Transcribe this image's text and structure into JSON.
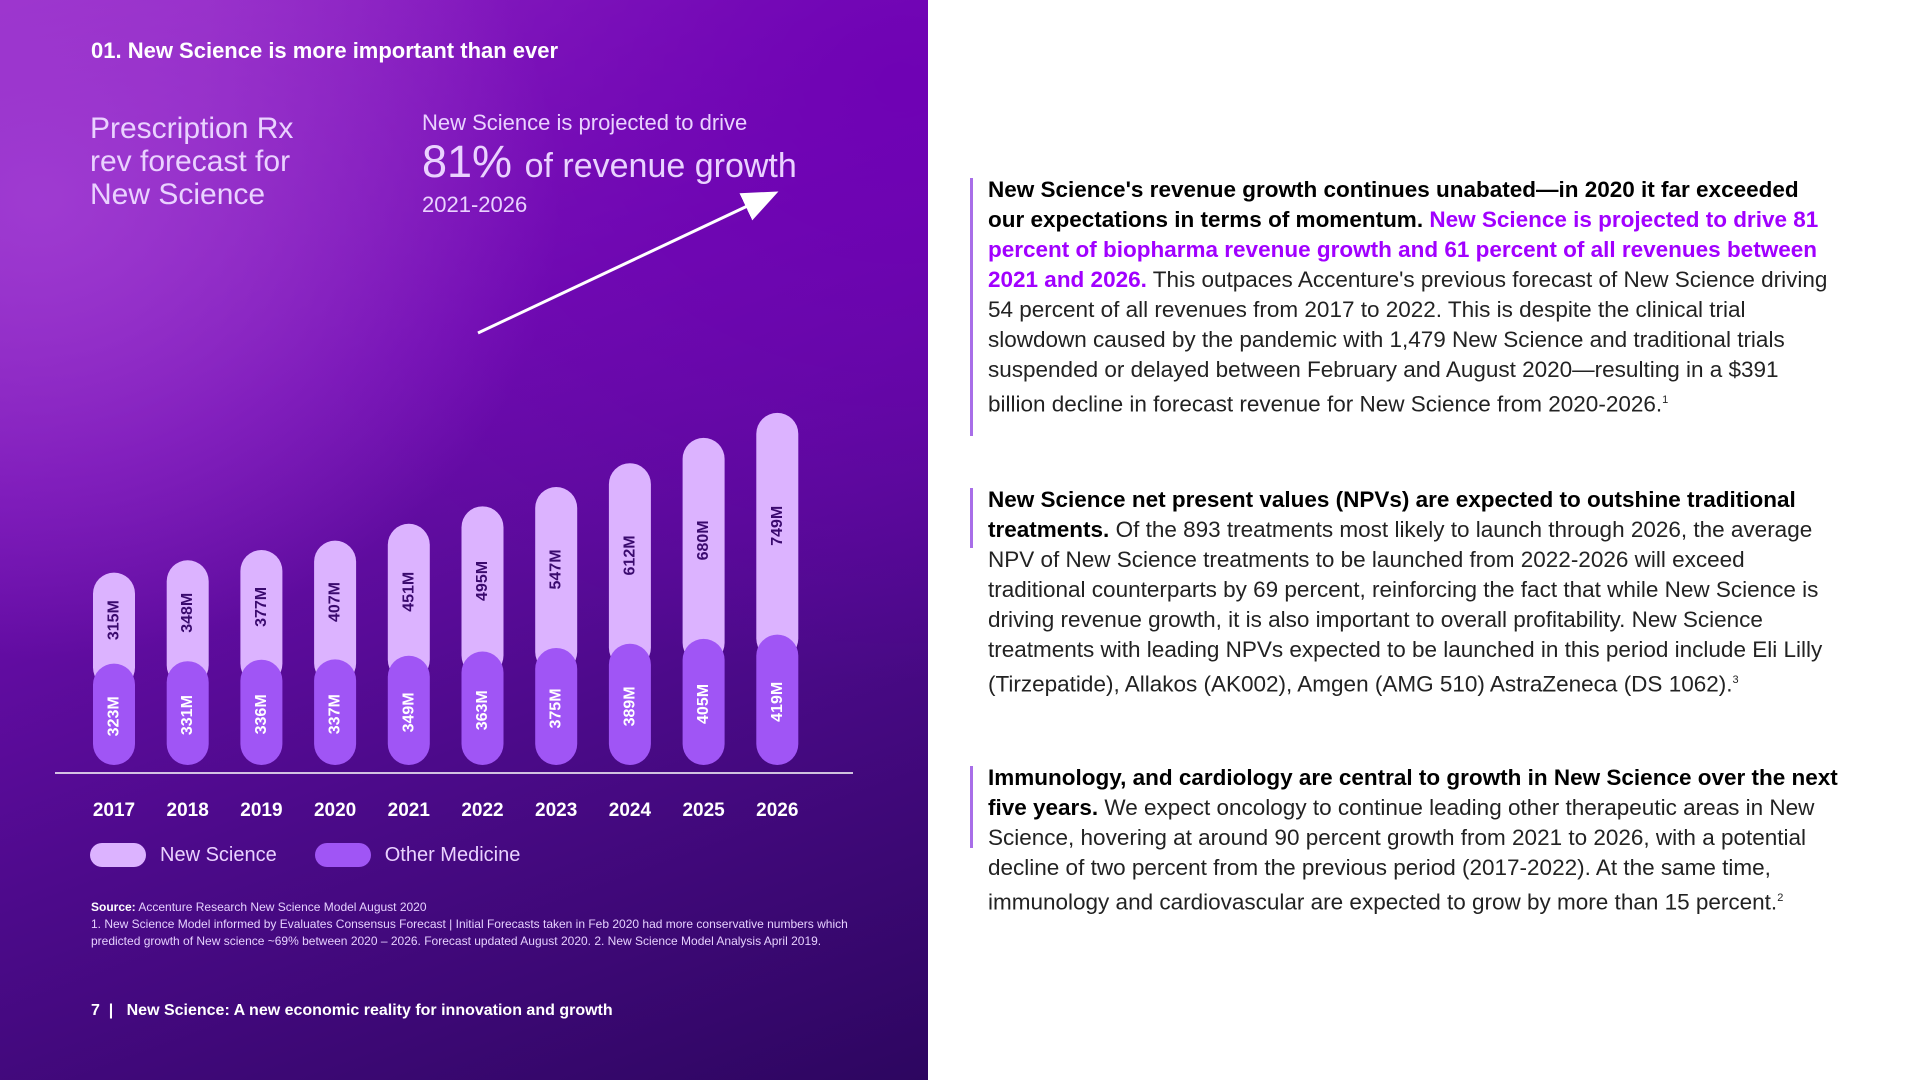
{
  "section_title": "01. New Science is more important than ever",
  "chart_heading": "Prescription Rx\nrev forecast for\nNew Science",
  "callout": {
    "lead": "New Science is projected to drive",
    "percent": "81%",
    "rest": "of revenue growth",
    "years": "2021-2026"
  },
  "chart_data": {
    "type": "bar",
    "stacked": true,
    "title": "Prescription Rx rev forecast for New Science",
    "categories": [
      "2017",
      "2018",
      "2019",
      "2020",
      "2021",
      "2022",
      "2023",
      "2024",
      "2025",
      "2026"
    ],
    "series": [
      {
        "name": "Other Medicine",
        "values": [
          323,
          331,
          336,
          337,
          349,
          363,
          375,
          389,
          405,
          419
        ],
        "labels": [
          "323M",
          "331M",
          "336M",
          "337M",
          "349M",
          "363M",
          "375M",
          "389M",
          "405M",
          "419M"
        ]
      },
      {
        "name": "New Science",
        "values": [
          315,
          348,
          377,
          407,
          451,
          495,
          547,
          612,
          680,
          749
        ],
        "labels": [
          "315M",
          "348M",
          "377M",
          "407M",
          "451M",
          "495M",
          "547M",
          "612M",
          "680M",
          "749M"
        ]
      }
    ],
    "unit": "M",
    "legend": [
      "New Science",
      "Other Medicine"
    ],
    "colors": {
      "new_science": "#dcb3ff",
      "other_medicine": "#a055f5"
    }
  },
  "sources": {
    "label": "Source:",
    "text": "Accenture Research New Science Model August 2020",
    "notes": "1. New Science Model informed by Evaluates Consensus Forecast | Initial Forecasts taken in Feb 2020 had more conservative numbers which predicted growth of New science ~69% between 2020 – 2026. Forecast updated August 2020. 2. New Science Model Analysis April 2019."
  },
  "footer": {
    "page": "7",
    "separator": "|",
    "title": "New Science: A new economic reality for innovation and growth"
  },
  "paragraphs": [
    {
      "bold": "New Science's revenue growth continues unabated—in 2020 it far exceeded our expectations in terms of momentum.",
      "highlight": "New Science is projected to drive 81 percent of biopharma revenue growth and 61 percent of all revenues between 2021 and 2026.",
      "body": "This outpaces Accenture's previous forecast of New Science driving 54 percent of all revenues from 2017 to 2022. This is despite the clinical trial slowdown caused by the pandemic with 1,479 New Science and traditional trials suspended or delayed between February and August 2020—resulting in a $391 billion decline in forecast revenue for New Science from 2020-2026.",
      "sup": "1"
    },
    {
      "bold": "New Science net present values (NPVs) are expected to outshine traditional treatments.",
      "body": "Of the 893 treatments most likely to launch through 2026, the average NPV of New Science treatments to be launched from 2022-2026 will exceed traditional counterparts by 69 percent, reinforcing the fact that while New Science is driving revenue growth, it is also important to overall profitability. New Science treatments with leading NPVs expected to be launched in this period include Eli Lilly (Tirzepatide), Allakos (AK002), Amgen (AMG 510) AstraZeneca (DS 1062).",
      "sup": "3"
    },
    {
      "bold": "Immunology, and cardiology are central to growth in New Science over the next five years.",
      "body": "We expect oncology to continue leading other therapeutic areas in New Science, hovering at around 90 percent growth from 2021 to 2026, with a potential decline of two percent from the previous period (2017-2022). At the same time, immunology and cardiovascular are expected to grow by more than 15 percent.",
      "sup": "2"
    }
  ]
}
